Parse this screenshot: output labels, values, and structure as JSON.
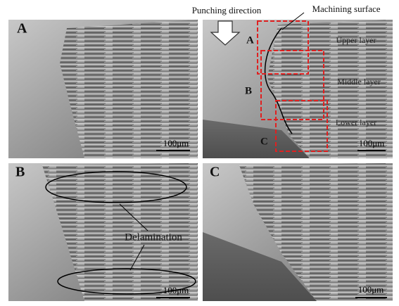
{
  "header": {
    "punching_direction": "Punching direction",
    "machining_surface": "Machining surface"
  },
  "panels": [
    {
      "label": "A",
      "scale_bar": "100μm"
    },
    {
      "scale_bar": "100μm",
      "regions": [
        "A",
        "B",
        "C"
      ],
      "layers": [
        "Upper layer",
        "Middle layer",
        "Lower layer"
      ]
    },
    {
      "label": "B",
      "scale_bar": "100μm",
      "annotation": "Delamination"
    },
    {
      "label": "C",
      "scale_bar": "100μm"
    }
  ]
}
